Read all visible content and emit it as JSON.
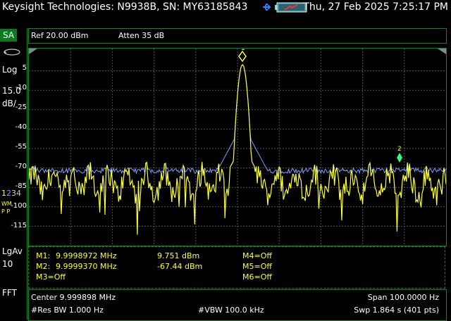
{
  "titlebar": {
    "title": "Keysight Technologies: N9938B, SN: MY63185843",
    "datetime": "Thu, 27 Feb 2025 7:25:17 PM"
  },
  "side": {
    "mode": "SA",
    "scale_type": "Log",
    "scale_value": "15.0",
    "scale_unit": "dB/",
    "trace_numbers": [
      "1",
      "2",
      "3",
      "4"
    ],
    "trace_mode1": "WM",
    "trace_mode2": "P P",
    "avg_label": "LgAv",
    "avg_value": "10",
    "sweep_type": "FFT"
  },
  "header": {
    "ref": "Ref 20.00 dBm",
    "atten": "Atten 35 dB"
  },
  "plot": {
    "y_ticks": [
      "5",
      "-10",
      "-25",
      "-40",
      "-55",
      "-70",
      "-85",
      "-100",
      "-115"
    ],
    "ref_level_dbm": 20,
    "db_per_div": 15,
    "divisions": 10,
    "marker_labels": [
      "1",
      "2"
    ],
    "colors": {
      "trace_yellow": "#ffff33",
      "trace_blue": "#7f9fff",
      "grid": "#555555",
      "frame": "#0d8a24"
    }
  },
  "markers": {
    "m1_label": "M1:",
    "m1_freq": "9.9998972 MHz",
    "m1_amp": "9.751 dBm",
    "m2_label": "M2:",
    "m2_freq": "9.9999370 MHz",
    "m2_amp": "-67.44 dBm",
    "m3": "M3=Off",
    "m4": "M4=Off",
    "m5": "M5=Off",
    "m6": "M6=Off"
  },
  "footer": {
    "center": "Center 9.999898 MHz",
    "span": "Span 100.0000  Hz",
    "rbw": "#Res BW 1.000  Hz",
    "vbw": "#VBW 100.0 kHz",
    "sweep": "Swp 1.864  s (401 pts)"
  }
}
